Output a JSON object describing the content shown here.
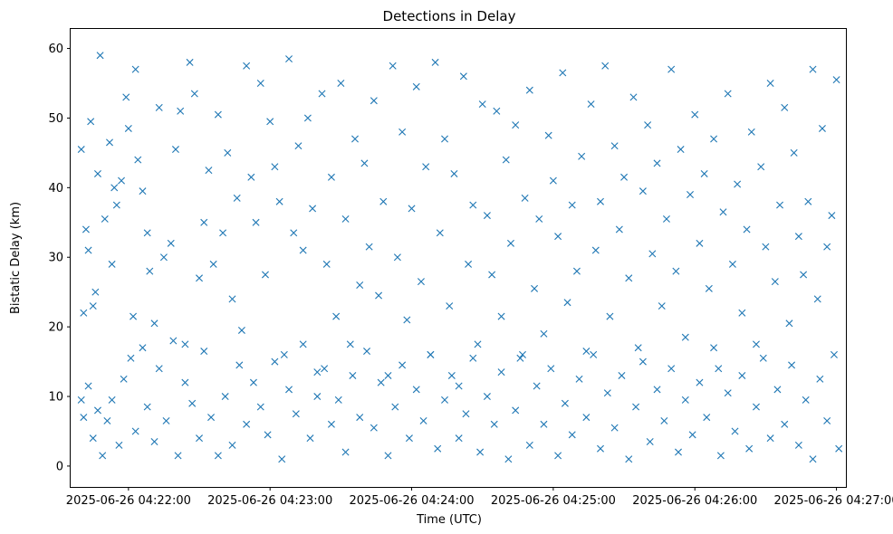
{
  "chart_data": {
    "type": "scatter",
    "title": "Detections in Delay",
    "xlabel": "Time (UTC)",
    "ylabel": "Bistatic Delay (km)",
    "marker": "x",
    "color": "#1f77b4",
    "grid": false,
    "x_unit": "seconds since 2025-06-26 04:21:00",
    "xlim": [
      35.5,
      364.0
    ],
    "ylim": [
      -3.0,
      62.8
    ],
    "x_ticks": [
      {
        "value": 60,
        "label": "2025-06-26 04:22:00"
      },
      {
        "value": 120,
        "label": "2025-06-26 04:23:00"
      },
      {
        "value": 180,
        "label": "2025-06-26 04:24:00"
      },
      {
        "value": 240,
        "label": "2025-06-26 04:25:00"
      },
      {
        "value": 300,
        "label": "2025-06-26 04:26:00"
      },
      {
        "value": 360,
        "label": "2025-06-26 04:27:00"
      }
    ],
    "y_ticks": [
      {
        "value": 0,
        "label": "0"
      },
      {
        "value": 10,
        "label": "10"
      },
      {
        "value": 20,
        "label": "20"
      },
      {
        "value": 30,
        "label": "30"
      },
      {
        "value": 40,
        "label": "40"
      },
      {
        "value": 50,
        "label": "50"
      },
      {
        "value": 60,
        "label": "60"
      }
    ],
    "points": [
      [
        40,
        45.5
      ],
      [
        41,
        22
      ],
      [
        42,
        34
      ],
      [
        43,
        31
      ],
      [
        44,
        49.5
      ],
      [
        45,
        23
      ],
      [
        46,
        25
      ],
      [
        47,
        42
      ],
      [
        48,
        59
      ],
      [
        50,
        35.5
      ],
      [
        52,
        46.5
      ],
      [
        53,
        29
      ],
      [
        54,
        40
      ],
      [
        55,
        37.5
      ],
      [
        57,
        41
      ],
      [
        59,
        53
      ],
      [
        60,
        48.5
      ],
      [
        62,
        21.5
      ],
      [
        63,
        57
      ],
      [
        64,
        44
      ],
      [
        66,
        39.5
      ],
      [
        68,
        33.5
      ],
      [
        69,
        28
      ],
      [
        71,
        20.5
      ],
      [
        73,
        51.5
      ],
      [
        75,
        30
      ],
      [
        78,
        32
      ],
      [
        80,
        45.5
      ],
      [
        82,
        51
      ],
      [
        84,
        17.5
      ],
      [
        86,
        58
      ],
      [
        88,
        53.5
      ],
      [
        90,
        27
      ],
      [
        92,
        35
      ],
      [
        94,
        42.5
      ],
      [
        96,
        29
      ],
      [
        98,
        50.5
      ],
      [
        100,
        33.5
      ],
      [
        102,
        45
      ],
      [
        104,
        24
      ],
      [
        106,
        38.5
      ],
      [
        108,
        19.5
      ],
      [
        110,
        57.5
      ],
      [
        112,
        41.5
      ],
      [
        114,
        35
      ],
      [
        116,
        55
      ],
      [
        118,
        27.5
      ],
      [
        120,
        49.5
      ],
      [
        122,
        43
      ],
      [
        124,
        38
      ],
      [
        126,
        16
      ],
      [
        128,
        58.5
      ],
      [
        130,
        33.5
      ],
      [
        132,
        46
      ],
      [
        134,
        31
      ],
      [
        136,
        50
      ],
      [
        138,
        37
      ],
      [
        140,
        13.5
      ],
      [
        142,
        53.5
      ],
      [
        144,
        29
      ],
      [
        146,
        41.5
      ],
      [
        148,
        21.5
      ],
      [
        150,
        55
      ],
      [
        152,
        35.5
      ],
      [
        154,
        17.5
      ],
      [
        156,
        47
      ],
      [
        158,
        26
      ],
      [
        160,
        43.5
      ],
      [
        162,
        31.5
      ],
      [
        164,
        52.5
      ],
      [
        166,
        24.5
      ],
      [
        168,
        38
      ],
      [
        170,
        13
      ],
      [
        172,
        57.5
      ],
      [
        174,
        30
      ],
      [
        176,
        48
      ],
      [
        178,
        21
      ],
      [
        180,
        37
      ],
      [
        182,
        54.5
      ],
      [
        184,
        26.5
      ],
      [
        186,
        43
      ],
      [
        188,
        16
      ],
      [
        190,
        58
      ],
      [
        192,
        33.5
      ],
      [
        194,
        47
      ],
      [
        196,
        23
      ],
      [
        198,
        42
      ],
      [
        200,
        11.5
      ],
      [
        202,
        56
      ],
      [
        204,
        29
      ],
      [
        206,
        37.5
      ],
      [
        208,
        17.5
      ],
      [
        210,
        52
      ],
      [
        212,
        36
      ],
      [
        214,
        27.5
      ],
      [
        216,
        51
      ],
      [
        218,
        21.5
      ],
      [
        220,
        44
      ],
      [
        222,
        32
      ],
      [
        224,
        49
      ],
      [
        226,
        15.5
      ],
      [
        228,
        38.5
      ],
      [
        230,
        54
      ],
      [
        232,
        25.5
      ],
      [
        234,
        35.5
      ],
      [
        236,
        19
      ],
      [
        238,
        47.5
      ],
      [
        240,
        41
      ],
      [
        242,
        33
      ],
      [
        244,
        56.5
      ],
      [
        246,
        23.5
      ],
      [
        248,
        37.5
      ],
      [
        250,
        28
      ],
      [
        252,
        44.5
      ],
      [
        254,
        16.5
      ],
      [
        256,
        52
      ],
      [
        258,
        31
      ],
      [
        260,
        38
      ],
      [
        262,
        57.5
      ],
      [
        264,
        21.5
      ],
      [
        266,
        46
      ],
      [
        268,
        34
      ],
      [
        270,
        41.5
      ],
      [
        272,
        27
      ],
      [
        274,
        53
      ],
      [
        276,
        17
      ],
      [
        278,
        39.5
      ],
      [
        280,
        49
      ],
      [
        282,
        30.5
      ],
      [
        284,
        43.5
      ],
      [
        286,
        23
      ],
      [
        288,
        35.5
      ],
      [
        290,
        57
      ],
      [
        292,
        28
      ],
      [
        294,
        45.5
      ],
      [
        296,
        18.5
      ],
      [
        298,
        39
      ],
      [
        300,
        50.5
      ],
      [
        302,
        32
      ],
      [
        304,
        42
      ],
      [
        306,
        25.5
      ],
      [
        308,
        47
      ],
      [
        310,
        14
      ],
      [
        312,
        36.5
      ],
      [
        314,
        53.5
      ],
      [
        316,
        29
      ],
      [
        318,
        40.5
      ],
      [
        320,
        22
      ],
      [
        322,
        34
      ],
      [
        324,
        48
      ],
      [
        326,
        17.5
      ],
      [
        328,
        43
      ],
      [
        330,
        31.5
      ],
      [
        332,
        55
      ],
      [
        334,
        26.5
      ],
      [
        336,
        37.5
      ],
      [
        338,
        51.5
      ],
      [
        340,
        20.5
      ],
      [
        342,
        45
      ],
      [
        344,
        33
      ],
      [
        346,
        27.5
      ],
      [
        348,
        38
      ],
      [
        350,
        57
      ],
      [
        352,
        24
      ],
      [
        354,
        48.5
      ],
      [
        356,
        31.5
      ],
      [
        358,
        36
      ],
      [
        360,
        55.5
      ],
      [
        40,
        9.5
      ],
      [
        41,
        7
      ],
      [
        43,
        11.5
      ],
      [
        45,
        4
      ],
      [
        47,
        8
      ],
      [
        49,
        1.5
      ],
      [
        51,
        6.5
      ],
      [
        53,
        9.5
      ],
      [
        56,
        3
      ],
      [
        58,
        12.5
      ],
      [
        61,
        15.5
      ],
      [
        63,
        5
      ],
      [
        66,
        17
      ],
      [
        68,
        8.5
      ],
      [
        71,
        3.5
      ],
      [
        73,
        14
      ],
      [
        76,
        6.5
      ],
      [
        79,
        18
      ],
      [
        81,
        1.5
      ],
      [
        84,
        12
      ],
      [
        87,
        9
      ],
      [
        90,
        4
      ],
      [
        92,
        16.5
      ],
      [
        95,
        7
      ],
      [
        98,
        1.5
      ],
      [
        101,
        10
      ],
      [
        104,
        3
      ],
      [
        107,
        14.5
      ],
      [
        110,
        6
      ],
      [
        113,
        12
      ],
      [
        116,
        8.5
      ],
      [
        119,
        4.5
      ],
      [
        122,
        15
      ],
      [
        125,
        1
      ],
      [
        128,
        11
      ],
      [
        131,
        7.5
      ],
      [
        134,
        17.5
      ],
      [
        137,
        4
      ],
      [
        140,
        10
      ],
      [
        143,
        14
      ],
      [
        146,
        6
      ],
      [
        149,
        9.5
      ],
      [
        152,
        2
      ],
      [
        155,
        13
      ],
      [
        158,
        7
      ],
      [
        161,
        16.5
      ],
      [
        164,
        5.5
      ],
      [
        167,
        12
      ],
      [
        170,
        1.5
      ],
      [
        173,
        8.5
      ],
      [
        176,
        14.5
      ],
      [
        179,
        4
      ],
      [
        182,
        11
      ],
      [
        185,
        6.5
      ],
      [
        188,
        16
      ],
      [
        191,
        2.5
      ],
      [
        194,
        9.5
      ],
      [
        197,
        13
      ],
      [
        200,
        4
      ],
      [
        203,
        7.5
      ],
      [
        206,
        15.5
      ],
      [
        209,
        2
      ],
      [
        212,
        10
      ],
      [
        215,
        6
      ],
      [
        218,
        13.5
      ],
      [
        221,
        1
      ],
      [
        224,
        8
      ],
      [
        227,
        16
      ],
      [
        230,
        3
      ],
      [
        233,
        11.5
      ],
      [
        236,
        6
      ],
      [
        239,
        14
      ],
      [
        242,
        1.5
      ],
      [
        245,
        9
      ],
      [
        248,
        4.5
      ],
      [
        251,
        12.5
      ],
      [
        254,
        7
      ],
      [
        257,
        16
      ],
      [
        260,
        2.5
      ],
      [
        263,
        10.5
      ],
      [
        266,
        5.5
      ],
      [
        269,
        13
      ],
      [
        272,
        1
      ],
      [
        275,
        8.5
      ],
      [
        278,
        15
      ],
      [
        281,
        3.5
      ],
      [
        284,
        11
      ],
      [
        287,
        6.5
      ],
      [
        290,
        14
      ],
      [
        293,
        2
      ],
      [
        296,
        9.5
      ],
      [
        299,
        4.5
      ],
      [
        302,
        12
      ],
      [
        305,
        7
      ],
      [
        308,
        17
      ],
      [
        311,
        1.5
      ],
      [
        314,
        10.5
      ],
      [
        317,
        5
      ],
      [
        320,
        13
      ],
      [
        323,
        2.5
      ],
      [
        326,
        8.5
      ],
      [
        329,
        15.5
      ],
      [
        332,
        4
      ],
      [
        335,
        11
      ],
      [
        338,
        6
      ],
      [
        341,
        14.5
      ],
      [
        344,
        3
      ],
      [
        347,
        9.5
      ],
      [
        350,
        1
      ],
      [
        353,
        12.5
      ],
      [
        356,
        6.5
      ],
      [
        359,
        16
      ],
      [
        361,
        2.5
      ]
    ]
  }
}
